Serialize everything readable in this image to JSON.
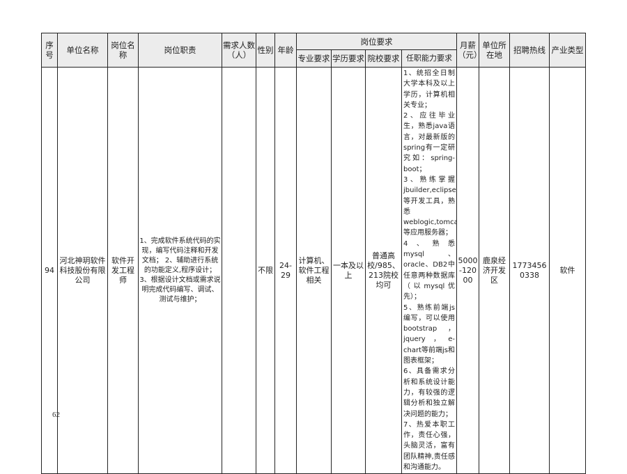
{
  "headers": {
    "index": "序号",
    "company": "单位名称",
    "position": "岗位名称",
    "duties": "岗位职责",
    "headcount": "需求人数（人）",
    "gender": "性别",
    "age": "年龄",
    "requirements": "岗位要求",
    "major": "专业要求",
    "education": "学历要求",
    "school": "院校要求",
    "ability": "任职能力要求",
    "salary": "月薪（元）",
    "location": "单位所在地",
    "hotline": "招聘热线",
    "industry": "产业类型"
  },
  "rows": [
    {
      "index": "94",
      "company": "河北神玥软件科技股份有限公司",
      "position": "软件开发工程师",
      "duties": "1、完成软件系统代码的实现，编写代码注释和开发文档；\n2、辅助进行系统的功能定义,程序设计；\n3、根据设计文档或需求说明完成代码编写、调试、测试与维护；",
      "headcount": "",
      "gender": "不限",
      "age": "24-29",
      "major": "计算机、软件工程相关",
      "education": "一本及以上",
      "school": "普通高校/985、213院校均可",
      "ability": "1、统招全日制大学本科及以上学历，计算机相关专业；\n2、应往毕业生，熟悉java语言，对最新版的spring有一定研究如：spring-boot；\n3、熟练掌握jbuilder,eclipse等开发工具，熟悉weblogic,tomcat等应用服务器；\n4、熟悉mysql、oracle、DB2中任意两种数据库（以mysql优先）；\n5、熟练前端js编写，可以使用bootstrap，jquery，e-chart等前端js和图表框架；\n6、具备需求分析和系统设计能力，有较强的逻辑分析和独立解决问题的能力；\n7、热爱本职工作，责任心强，头脑灵活，富有团队精神,责任感和沟通能力。",
      "salary": "5000-12000",
      "location": "鹿泉经济开发区",
      "hotline": "17734560338",
      "industry": "软件"
    }
  ],
  "page_number": "62"
}
